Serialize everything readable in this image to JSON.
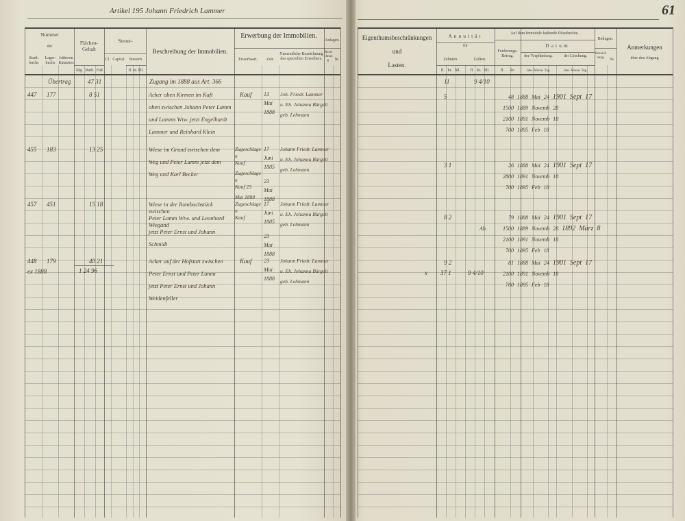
{
  "left_page": {
    "title": "Artikel 195 Johann Friedrich Lammer",
    "headers": {
      "nummer": "Nummer",
      "der": "der",
      "stadtbuch": "Stadt-buchs",
      "lagerbuch": "Lager-buchs",
      "frueheren_kataster": "früheren Katasters",
      "flaechen": "Flächen-Gehalt",
      "flaechen_sub": [
        "Mg.",
        "Ruth.",
        "Fuß"
      ],
      "steuer": "Steuer-",
      "steuer_sub": [
        "Cl.",
        "Capital",
        "Steuerb."
      ],
      "steuer_sub2": [
        "fl.",
        "kr.",
        "hll."
      ],
      "beschreibung": "Beschreibung der Immobilien.",
      "erwerbung": "Erwerbung der Immobilien.",
      "erwerbsart": "Erwerbsart.",
      "zeit": "Zeit.",
      "namentliche": "Namentliche Bezeichnung des speciellen Erwerbers.",
      "anlagen": "Anlagen.",
      "anlagen_sub": [
        "Bezeichnung.",
        "№"
      ]
    },
    "entries": {
      "r0_nummer": "Übertrag",
      "r0_fl": "47 31",
      "r0_desc": "Zugang im 1888 aus Art. 366",
      "r1_stadt": "447",
      "r1_lager": "177",
      "r1_fl": "8 51",
      "r1_desc": [
        "Acker oben Kirmen im Kaft",
        "oben zwischen Johann Peter Lamm",
        "und Lamms Wtw. jetzt Engelhardt",
        "Lammer und Reinhard Klein"
      ],
      "r1_art": "Kauf",
      "r1_zeit": [
        "13",
        "Mai",
        "1888"
      ],
      "r1_name": [
        "Joh. Friedr. Lammer",
        "u. Eh. Johanna Bürgelt",
        "geb. Lehmann"
      ],
      "r2_stadt": "455",
      "r2_lager": "183",
      "r2_fl": "13 25",
      "r2_desc": [
        "Wiese im Grund zwischen dem",
        "Weg und Peter Lamm jetzt dem",
        "Weg und Karl Becker"
      ],
      "r2_art": [
        "Zugeschlagen",
        "Kauf",
        "Zugeschlagen",
        "Kauf 23",
        "Mai 1888"
      ],
      "r2_zeit": [
        "17",
        "Juni",
        "1885",
        "23",
        "Mai",
        "1888"
      ],
      "r2_name": [
        "Johann Friedr. Lammer",
        "u. Eh. Johanna Bürgelt",
        "geb. Lehmann"
      ],
      "r3_stadt": "457",
      "r3_lager": "451",
      "r3_fl": "15 18",
      "r3_desc": [
        "Wiese in der Rombachstück zwischen",
        "Peter Lamm Wtw. und Leonhard Wiegand",
        "jetzt Peter Ernst und Johann",
        "Schmidt"
      ],
      "r3_art": [
        "Zugeschlagen",
        "Kauf"
      ],
      "r3_zeit": [
        "17",
        "Juni",
        "1885",
        "23",
        "Mai",
        "1888"
      ],
      "r3_name": [
        "Johann Friedr. Lammer",
        "u. Eh. Johanna Bürgelt",
        "geb. Lehmann"
      ],
      "r4_stadt": [
        "448",
        "ex 1888"
      ],
      "r4_lager": "179",
      "r4_fl": "40 21",
      "r4_total": "1 24 96",
      "r4_desc": [
        "Acker auf der Hofstatt zwischen",
        "Peter Ernst und Peter Lamm",
        "jetzt Peter Ernst und Johann",
        "Weidenfeller"
      ],
      "r4_art": "Kauf",
      "r4_zeit": [
        "23",
        "Mai",
        "1888"
      ],
      "r4_name": [
        "Johann Friedr. Lammer",
        "u. Eh. Johanna Bürgelt",
        "geb. Lehmann"
      ]
    }
  },
  "right_page": {
    "page_number": "61",
    "headers": {
      "eigentum": "Eigenthumsbeschränkungen",
      "und": "und",
      "lasten": "Lasten.",
      "annuitaet": "Annuität",
      "fuer": "für",
      "zehnten": "Zehnten.",
      "gueltten": "Gülten.",
      "money_sub": [
        "fl.",
        "kr.",
        "hll."
      ],
      "pfandrechte": "Auf dem Immobile haftende Pfandrechte.",
      "forderung": "Forderungs-Betrag.",
      "forderung_sub": [
        "fl.",
        "kr."
      ],
      "datum": "Datum",
      "verpfaendung": "der Verpfändung.",
      "loeschung": "der Löschung.",
      "date_sub": [
        "Jahr.",
        "Monat.",
        "Tag."
      ],
      "beilagen": "Beilagen.",
      "beilagen_sub": [
        "Bezeichnung.",
        "№"
      ],
      "anmerkungen": "Anmerkungen",
      "ueber_abgang": "über den Abgang"
    },
    "entries": {
      "g0_zehnt": "11",
      "g0_guelt": "9 4/10",
      "g1_zehnt": "5",
      "g1": [
        [
          "48",
          "1888",
          "Mai",
          "24",
          "1901",
          "Sept",
          "17"
        ],
        [
          "1500",
          "1889",
          "Novemb",
          "28"
        ],
        [
          "2100",
          "1891",
          "Novemb",
          "18"
        ],
        [
          "700",
          "1895",
          "Feb",
          "18"
        ]
      ],
      "g2_zehnt": "3 1",
      "g2": [
        [
          "26",
          "1888",
          "Mai",
          "24",
          "1901",
          "Sept",
          "17"
        ],
        [
          "2800",
          "1891",
          "Novemb",
          "18"
        ],
        [
          "700",
          "1895",
          "Feb",
          "18"
        ]
      ],
      "g3_zehnt": "8 2",
      "g3_ab": "Ab.",
      "g3": [
        [
          "79",
          "1888",
          "Mai",
          "24",
          "1901",
          "Sept",
          "17"
        ],
        [
          "1500",
          "1889",
          "Novemb",
          "28",
          "1892",
          "März",
          "8"
        ],
        [
          "2100",
          "1891",
          "Novemb",
          "18"
        ],
        [
          "700",
          "1895",
          "Feb",
          "18"
        ]
      ],
      "g4_zehnt": "9 2",
      "g4_sum_zehnt": "37 1",
      "g4_sum_guelt": "9 4/10",
      "g4_mark": "x",
      "g4": [
        [
          "81",
          "1888",
          "Mai",
          "24",
          "1901",
          "Sept",
          "17"
        ],
        [
          "2100",
          "1891",
          "Novemb",
          "18"
        ],
        [
          "700",
          "1895",
          "Feb",
          "18"
        ]
      ]
    }
  },
  "colors": {
    "paper": "#e6e2d2",
    "ink": "#4a3c2c",
    "rule": "#5a646e"
  }
}
